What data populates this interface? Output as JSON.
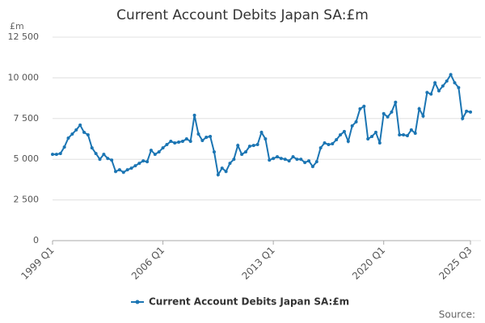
{
  "chart_data": {
    "type": "line",
    "title": "Current Account Debits Japan SA:£m",
    "y_label": "£m",
    "source": "Source:",
    "categories": [
      "1999 Q1",
      null,
      null,
      null,
      null,
      null,
      null,
      null,
      null,
      null,
      null,
      null,
      null,
      null,
      null,
      null,
      null,
      null,
      null,
      null,
      null,
      null,
      null,
      null,
      null,
      null,
      null,
      null,
      "2006 Q1",
      null,
      null,
      null,
      null,
      null,
      null,
      null,
      null,
      null,
      null,
      null,
      null,
      null,
      null,
      null,
      null,
      null,
      null,
      null,
      null,
      null,
      null,
      null,
      null,
      null,
      null,
      null,
      "2013 Q1",
      null,
      null,
      null,
      null,
      null,
      null,
      null,
      null,
      null,
      null,
      null,
      null,
      null,
      null,
      null,
      null,
      null,
      null,
      null,
      null,
      null,
      null,
      null,
      null,
      null,
      null,
      null,
      "2020 Q1",
      null,
      null,
      null,
      null,
      null,
      null,
      null,
      null,
      null,
      null,
      null,
      null,
      null,
      null,
      null,
      null,
      null,
      null,
      null,
      null,
      null,
      "2025 Q3"
    ],
    "series": [
      {
        "name": "Current Account Debits Japan SA:£m",
        "color": "#1b75b3",
        "values": [
          5300,
          5300,
          5350,
          5750,
          6300,
          6550,
          6800,
          7100,
          6650,
          6500,
          5700,
          5350,
          5000,
          5300,
          5050,
          4950,
          4250,
          4350,
          4200,
          4350,
          4450,
          4600,
          4750,
          4900,
          4850,
          5550,
          5300,
          5450,
          5700,
          5900,
          6100,
          6000,
          6050,
          6100,
          6250,
          6100,
          7700,
          6550,
          6150,
          6350,
          6400,
          5450,
          4050,
          4450,
          4250,
          4750,
          5000,
          5850,
          5300,
          5450,
          5800,
          5850,
          5900,
          6650,
          6250,
          4950,
          5050,
          5150,
          5050,
          5000,
          4900,
          5150,
          5000,
          5000,
          4800,
          4900,
          4550,
          4850,
          5700,
          6000,
          5900,
          5950,
          6200,
          6500,
          6700,
          6100,
          7050,
          7300,
          8100,
          8250,
          6250,
          6400,
          6650,
          6000,
          7800,
          7600,
          7900,
          8500,
          6500,
          6500,
          6450,
          6800,
          6600,
          8100,
          7650,
          9100,
          9000,
          9700,
          9200,
          9500,
          9800,
          10200,
          9700,
          9400,
          7500,
          7950,
          7900
        ]
      }
    ],
    "ylim": [
      0,
      12500
    ],
    "yticks": [
      0,
      {
        "value": 2500,
        "label": "2 500"
      },
      {
        "value": 5000,
        "label": "5 000"
      },
      {
        "value": 7500,
        "label": "7 500"
      },
      {
        "value": 10000,
        "label": "10 000"
      },
      {
        "value": 12500,
        "label": "12 500"
      }
    ],
    "grid": true
  }
}
